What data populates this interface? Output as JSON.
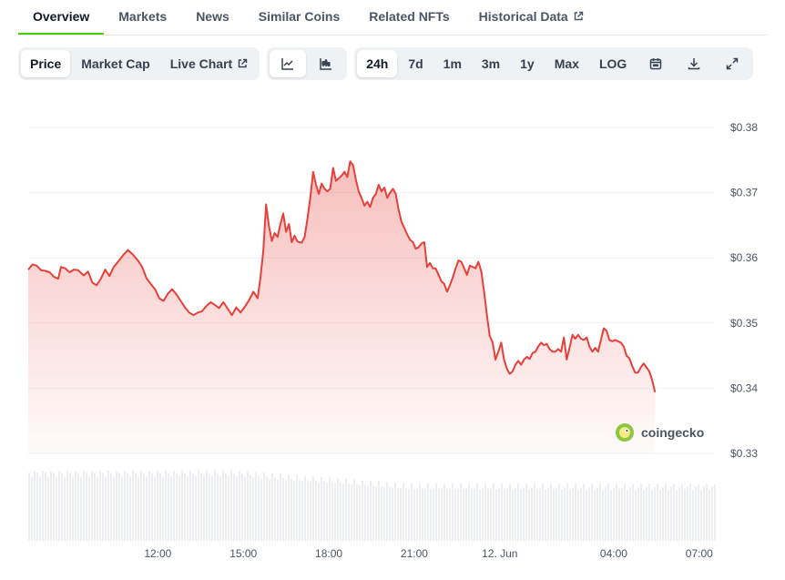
{
  "tabs": [
    {
      "label": "Overview",
      "active": true
    },
    {
      "label": "Markets"
    },
    {
      "label": "News"
    },
    {
      "label": "Similar Coins"
    },
    {
      "label": "Related NFTs"
    },
    {
      "label": "Historical Data",
      "external": true
    }
  ],
  "toolbar": {
    "metric_buttons": [
      {
        "label": "Price",
        "active": true
      },
      {
        "label": "Market Cap"
      },
      {
        "label": "Live Chart",
        "external": true
      }
    ],
    "chart_type_icons": [
      "line-chart-icon",
      "candlestick-chart-icon"
    ],
    "ranges": [
      {
        "label": "24h",
        "active": true
      },
      {
        "label": "7d"
      },
      {
        "label": "1m"
      },
      {
        "label": "3m"
      },
      {
        "label": "1y"
      },
      {
        "label": "Max"
      },
      {
        "label": "LOG"
      }
    ],
    "tool_icons": [
      "calendar-icon",
      "download-icon",
      "fullscreen-icon"
    ]
  },
  "watermark": "coingecko",
  "colors": {
    "line": "#e6403a",
    "accent": "#4bcc00",
    "volume": "#eceef1",
    "grid": "#eef0f3"
  },
  "chart_data": {
    "type": "area",
    "title": "",
    "xlabel": "",
    "ylabel": "",
    "ylim": [
      0.33,
      0.38
    ],
    "y_ticks": [
      "$0.33",
      "$0.34",
      "$0.35",
      "$0.36",
      "$0.37",
      "$0.38"
    ],
    "x_ticks": [
      {
        "label": "12:00",
        "x": 12
      },
      {
        "label": "15:00",
        "x": 15
      },
      {
        "label": "18:00",
        "x": 18
      },
      {
        "label": "21:00",
        "x": 21
      },
      {
        "label": "12. Jun",
        "x": 24
      },
      {
        "label": "04:00",
        "x": 28
      },
      {
        "label": "07:00",
        "x": 31
      }
    ],
    "xlim": [
      7.45,
      31.55
    ],
    "grid": true,
    "series": [
      {
        "points": [
          [
            7.45,
            0.3582
          ],
          [
            7.6,
            0.359
          ],
          [
            7.75,
            0.3588
          ],
          [
            7.9,
            0.3581
          ],
          [
            8.05,
            0.358
          ],
          [
            8.2,
            0.3578
          ],
          [
            8.35,
            0.3571
          ],
          [
            8.5,
            0.3568
          ],
          [
            8.6,
            0.3586
          ],
          [
            8.75,
            0.3584
          ],
          [
            8.9,
            0.3578
          ],
          [
            9.05,
            0.3582
          ],
          [
            9.2,
            0.3581
          ],
          [
            9.4,
            0.3573
          ],
          [
            9.55,
            0.3579
          ],
          [
            9.7,
            0.3562
          ],
          [
            9.85,
            0.3558
          ],
          [
            10.0,
            0.3568
          ],
          [
            10.15,
            0.3582
          ],
          [
            10.3,
            0.3572
          ],
          [
            10.45,
            0.3586
          ],
          [
            10.6,
            0.3594
          ],
          [
            10.8,
            0.3605
          ],
          [
            10.95,
            0.3612
          ],
          [
            11.1,
            0.3606
          ],
          [
            11.3,
            0.3596
          ],
          [
            11.45,
            0.3586
          ],
          [
            11.6,
            0.3569
          ],
          [
            11.75,
            0.356
          ],
          [
            11.9,
            0.3552
          ],
          [
            12.05,
            0.3538
          ],
          [
            12.2,
            0.3534
          ],
          [
            12.35,
            0.3545
          ],
          [
            12.5,
            0.3552
          ],
          [
            12.65,
            0.3544
          ],
          [
            12.8,
            0.3534
          ],
          [
            12.95,
            0.3524
          ],
          [
            13.1,
            0.3516
          ],
          [
            13.25,
            0.3512
          ],
          [
            13.4,
            0.3516
          ],
          [
            13.55,
            0.3518
          ],
          [
            13.7,
            0.3526
          ],
          [
            13.85,
            0.3532
          ],
          [
            14.0,
            0.3528
          ],
          [
            14.15,
            0.3523
          ],
          [
            14.3,
            0.3532
          ],
          [
            14.45,
            0.3522
          ],
          [
            14.6,
            0.3512
          ],
          [
            14.75,
            0.3524
          ],
          [
            14.9,
            0.3516
          ],
          [
            15.05,
            0.3525
          ],
          [
            15.2,
            0.3535
          ],
          [
            15.35,
            0.3548
          ],
          [
            15.5,
            0.3538
          ],
          [
            15.6,
            0.357
          ],
          [
            15.7,
            0.361
          ],
          [
            15.8,
            0.3682
          ],
          [
            15.9,
            0.3648
          ],
          [
            16.0,
            0.3626
          ],
          [
            16.1,
            0.3638
          ],
          [
            16.2,
            0.3632
          ],
          [
            16.3,
            0.3652
          ],
          [
            16.4,
            0.3668
          ],
          [
            16.5,
            0.364
          ],
          [
            16.6,
            0.3652
          ],
          [
            16.7,
            0.3624
          ],
          [
            16.8,
            0.3634
          ],
          [
            16.9,
            0.3625
          ],
          [
            17.05,
            0.3623
          ],
          [
            17.15,
            0.3632
          ],
          [
            17.25,
            0.366
          ],
          [
            17.35,
            0.3692
          ],
          [
            17.45,
            0.3732
          ],
          [
            17.55,
            0.3712
          ],
          [
            17.65,
            0.3698
          ],
          [
            17.75,
            0.3714
          ],
          [
            17.85,
            0.3706
          ],
          [
            17.95,
            0.3702
          ],
          [
            18.05,
            0.3706
          ],
          [
            18.15,
            0.3738
          ],
          [
            18.25,
            0.3718
          ],
          [
            18.35,
            0.3722
          ],
          [
            18.45,
            0.3726
          ],
          [
            18.55,
            0.3732
          ],
          [
            18.65,
            0.3724
          ],
          [
            18.75,
            0.3748
          ],
          [
            18.85,
            0.3742
          ],
          [
            18.95,
            0.372
          ],
          [
            19.05,
            0.3702
          ],
          [
            19.15,
            0.3692
          ],
          [
            19.25,
            0.368
          ],
          [
            19.35,
            0.3686
          ],
          [
            19.45,
            0.3678
          ],
          [
            19.55,
            0.3692
          ],
          [
            19.65,
            0.3698
          ],
          [
            19.75,
            0.3712
          ],
          [
            19.85,
            0.3702
          ],
          [
            19.95,
            0.3708
          ],
          [
            20.05,
            0.3692
          ],
          [
            20.15,
            0.37
          ],
          [
            20.25,
            0.3706
          ],
          [
            20.35,
            0.3698
          ],
          [
            20.45,
            0.3674
          ],
          [
            20.55,
            0.3655
          ],
          [
            20.65,
            0.3646
          ],
          [
            20.75,
            0.3636
          ],
          [
            20.85,
            0.3628
          ],
          [
            20.95,
            0.3624
          ],
          [
            21.05,
            0.3614
          ],
          [
            21.15,
            0.3616
          ],
          [
            21.25,
            0.3622
          ],
          [
            21.35,
            0.3624
          ],
          [
            21.45,
            0.3586
          ],
          [
            21.55,
            0.3592
          ],
          [
            21.65,
            0.3584
          ],
          [
            21.75,
            0.3584
          ],
          [
            21.85,
            0.3574
          ],
          [
            21.95,
            0.3564
          ],
          [
            22.05,
            0.356
          ],
          [
            22.15,
            0.3548
          ],
          [
            22.25,
            0.3558
          ],
          [
            22.35,
            0.357
          ],
          [
            22.45,
            0.3584
          ],
          [
            22.55,
            0.3596
          ],
          [
            22.65,
            0.3594
          ],
          [
            22.75,
            0.3584
          ],
          [
            22.85,
            0.3574
          ],
          [
            22.95,
            0.3588
          ],
          [
            23.05,
            0.3586
          ],
          [
            23.15,
            0.3584
          ],
          [
            23.25,
            0.3594
          ],
          [
            23.35,
            0.3579
          ],
          [
            23.45,
            0.3548
          ],
          [
            23.55,
            0.3512
          ],
          [
            23.65,
            0.348
          ],
          [
            23.75,
            0.347
          ],
          [
            23.85,
            0.3444
          ],
          [
            23.95,
            0.3456
          ],
          [
            24.05,
            0.347
          ],
          [
            24.15,
            0.3444
          ],
          [
            24.25,
            0.343
          ],
          [
            24.35,
            0.3422
          ],
          [
            24.45,
            0.3426
          ],
          [
            24.55,
            0.3436
          ],
          [
            24.65,
            0.3442
          ],
          [
            24.75,
            0.3436
          ],
          [
            24.85,
            0.3444
          ],
          [
            24.95,
            0.3448
          ],
          [
            25.05,
            0.3445
          ],
          [
            25.15,
            0.3454
          ],
          [
            25.25,
            0.3456
          ],
          [
            25.35,
            0.3464
          ],
          [
            25.45,
            0.347
          ],
          [
            25.55,
            0.3466
          ],
          [
            25.65,
            0.3468
          ],
          [
            25.75,
            0.346
          ],
          [
            25.85,
            0.3456
          ],
          [
            25.95,
            0.3456
          ],
          [
            26.05,
            0.346
          ],
          [
            26.15,
            0.3456
          ],
          [
            26.25,
            0.3478
          ],
          [
            26.35,
            0.3444
          ],
          [
            26.45,
            0.3462
          ],
          [
            26.55,
            0.3482
          ],
          [
            26.65,
            0.3476
          ],
          [
            26.75,
            0.3482
          ],
          [
            26.85,
            0.3476
          ],
          [
            26.95,
            0.3474
          ],
          [
            27.05,
            0.3478
          ],
          [
            27.15,
            0.3464
          ],
          [
            27.25,
            0.3456
          ],
          [
            27.35,
            0.3462
          ],
          [
            27.45,
            0.3456
          ],
          [
            27.55,
            0.3474
          ],
          [
            27.65,
            0.3492
          ],
          [
            27.75,
            0.3488
          ],
          [
            27.85,
            0.3474
          ],
          [
            27.95,
            0.3472
          ],
          [
            28.05,
            0.3474
          ],
          [
            28.15,
            0.3472
          ],
          [
            28.25,
            0.347
          ],
          [
            28.35,
            0.3464
          ],
          [
            28.45,
            0.345
          ],
          [
            28.55,
            0.3446
          ],
          [
            28.65,
            0.3434
          ],
          [
            28.75,
            0.3424
          ],
          [
            28.85,
            0.3424
          ],
          [
            28.95,
            0.3432
          ],
          [
            29.05,
            0.3438
          ],
          [
            29.15,
            0.3432
          ],
          [
            29.25,
            0.3426
          ],
          [
            29.35,
            0.3412
          ],
          [
            29.45,
            0.3394
          ]
        ]
      }
    ]
  }
}
